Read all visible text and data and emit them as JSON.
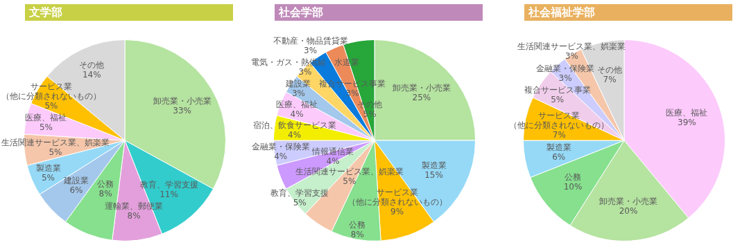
{
  "chart_data": [
    {
      "type": "pie",
      "title": "文学部",
      "legend": false,
      "categories": [
        "卸売業・小売業",
        "教育、学習支援",
        "運輸業、郵便業",
        "公務",
        "建設業",
        "製造業",
        "生活関連サービス業、娯楽業",
        "医療、福祉",
        "サービス業（他に分類されないもの）",
        "その他"
      ],
      "values": [
        33,
        11,
        8,
        8,
        6,
        5,
        5,
        5,
        5,
        14
      ],
      "value_labels": [
        "33%",
        "11%",
        "8%",
        "8%",
        "6%",
        "5%",
        "5%",
        "5%",
        "5%",
        "14%"
      ],
      "colors": [
        "#b5e3a0",
        "#33cccc",
        "#e39fdb",
        "#86e08e",
        "#a4c8ec",
        "#95d9f7",
        "#f5c6aa",
        "#fdcafc",
        "#fec000",
        "#d9d9d9"
      ]
    },
    {
      "type": "pie",
      "title": "社会学部",
      "legend": false,
      "categories": [
        "卸売業・小売業",
        "製造業",
        "サービス業（他に分類されないもの）",
        "公務",
        "生活関連サービス業、娯楽業",
        "教育、学習支援",
        "情報通信業",
        "金融業・保険業",
        "宿泊、飲食サービス業",
        "医療、福祉",
        "建設業",
        "電気・ガス・熱供給・水道業",
        "不動産・物品賃貸業",
        "複合サービス事業",
        "その他"
      ],
      "values": [
        25,
        15,
        9,
        8,
        5,
        5,
        4,
        4,
        4,
        4,
        3,
        3,
        3,
        3,
        5
      ],
      "value_labels": [
        "25%",
        "15%",
        "9%",
        "8%",
        "5%",
        "5%",
        "4%",
        "4%",
        "4%",
        "4%",
        "3%",
        "3%",
        "3%",
        "3%",
        "5%"
      ],
      "colors": [
        "#b5e3a0",
        "#95d9f7",
        "#fec000",
        "#86e08e",
        "#f5c6aa",
        "#c6efcc",
        "#cc99fe",
        "#ccccff",
        "#f3ee00",
        "#fdcafc",
        "#a4c8ec",
        "#fed666",
        "#0a7bdc",
        "#ec8a5a",
        "#27a63a"
      ]
    },
    {
      "type": "pie",
      "title": "社会福祉学部",
      "legend": false,
      "categories": [
        "医療、福祉",
        "卸売業・小売業",
        "公務",
        "製造業",
        "サービス業（他に分類されないもの）",
        "複合サービス事業",
        "金融業・保険業",
        "生活関連サービス業、娯楽業",
        "その他"
      ],
      "values": [
        39,
        20,
        10,
        6,
        7,
        5,
        3,
        3,
        7
      ],
      "value_labels": [
        "39%",
        "20%",
        "10%",
        "6%",
        "7%",
        "5%",
        "3%",
        "3%",
        "7%"
      ],
      "colors": [
        "#fdcafc",
        "#b5e3a0",
        "#86e08e",
        "#95d9f7",
        "#fec000",
        "#f1cdec",
        "#ccccff",
        "#f5c6aa",
        "#d9d9d9"
      ]
    }
  ]
}
